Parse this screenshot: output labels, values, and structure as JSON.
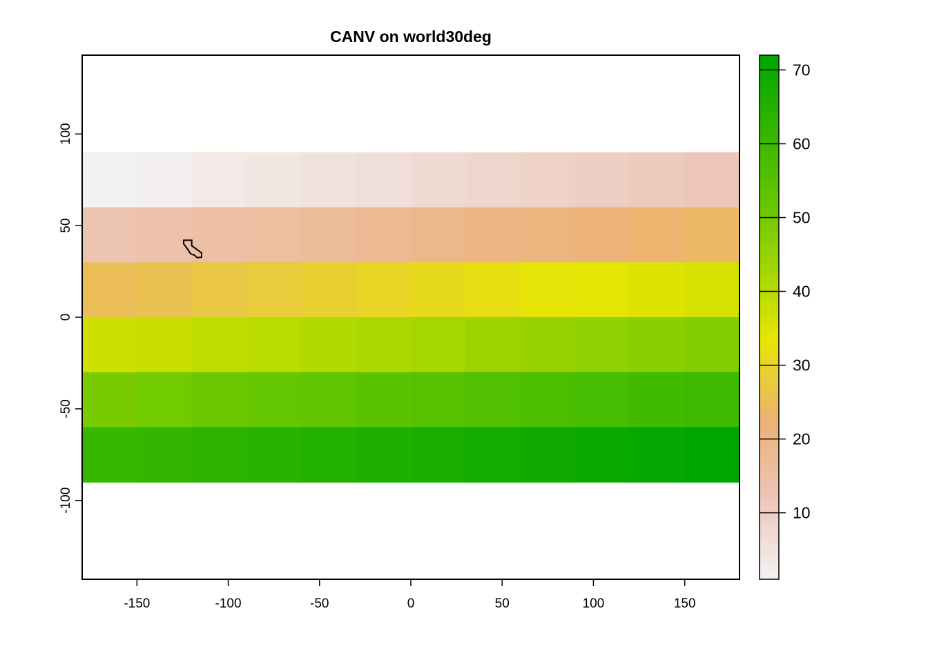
{
  "chart_data": {
    "type": "heatmap",
    "title": "CANV on world30deg",
    "xlim": [
      -180,
      180
    ],
    "ylim": [
      -143,
      143
    ],
    "x_ticks": [
      -150,
      -100,
      -50,
      0,
      50,
      100,
      150
    ],
    "y_ticks": [
      100,
      50,
      0,
      -50,
      -100
    ],
    "grid": false,
    "cell_size_deg": 30,
    "col_centers": [
      -165,
      -135,
      -105,
      -75,
      -45,
      -15,
      15,
      45,
      75,
      105,
      135,
      165
    ],
    "row_centers": [
      75,
      45,
      15,
      -15,
      -45,
      -75
    ],
    "values": [
      [
        1,
        2,
        3,
        4,
        5,
        6,
        7,
        8,
        9,
        10,
        11,
        12
      ],
      [
        13,
        14,
        15,
        16,
        17,
        18,
        19,
        20,
        21,
        22,
        23,
        24
      ],
      [
        25,
        26,
        27,
        28,
        29,
        30,
        31,
        32,
        33,
        34,
        35,
        36
      ],
      [
        37,
        38,
        39,
        40,
        41,
        42,
        43,
        44,
        45,
        46,
        47,
        48
      ],
      [
        49,
        50,
        51,
        52,
        53,
        54,
        55,
        56,
        57,
        58,
        59,
        60
      ],
      [
        61,
        62,
        63,
        64,
        65,
        66,
        67,
        68,
        69,
        70,
        71,
        72
      ]
    ],
    "legend": {
      "placement": "right",
      "min": 1,
      "max": 72,
      "ticks": [
        10,
        20,
        30,
        40,
        50,
        60,
        70
      ],
      "colors": [
        "#f2f2f2",
        "#ecb176",
        "#e6e600",
        "#00a600"
      ]
    },
    "outline_polygon": [
      [
        -124.4,
        42.0
      ],
      [
        -120.0,
        42.0
      ],
      [
        -120.0,
        39.0
      ],
      [
        -114.6,
        35.1
      ],
      [
        -114.6,
        32.7
      ],
      [
        -117.1,
        32.5
      ],
      [
        -118.4,
        33.8
      ],
      [
        -120.6,
        34.6
      ],
      [
        -122.5,
        37.5
      ],
      [
        -124.4,
        40.0
      ],
      [
        -124.4,
        42.0
      ]
    ]
  }
}
